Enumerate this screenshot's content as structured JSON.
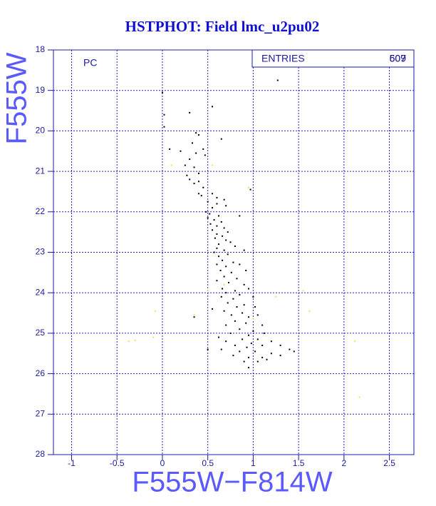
{
  "chart_data": {
    "type": "scatter",
    "title": "HSTPHOT: Field lmc_u2pu02",
    "x_label": "F555W−F814W",
    "y_label": "F555W",
    "annotation": "PC",
    "stats": {
      "label": "ENTRIES",
      "values": [
        509,
        607
      ]
    },
    "xlim": [
      -1.2,
      2.77
    ],
    "ylim": [
      28,
      18
    ],
    "xticks": [
      -1,
      -0.5,
      0,
      0.5,
      1,
      1.5,
      2,
      2.5
    ],
    "yticks": [
      18,
      19,
      20,
      21,
      22,
      23,
      24,
      25,
      26,
      27,
      28
    ],
    "grid": true,
    "series": [
      {
        "color": "#000000",
        "x": [
          0,
          0.02,
          0.02,
          0.3,
          0.55,
          1.27,
          0.37,
          0.4,
          0.33,
          0.65,
          0.08,
          0.2,
          0.45,
          0.37,
          0.47,
          0.3,
          0.25,
          0.35,
          0.27,
          0.4,
          0.3,
          0.35,
          0.4,
          0.45,
          0.97,
          0.4,
          0.43,
          0.55,
          0.6,
          0.68,
          0.5,
          0.6,
          0.7,
          0.55,
          0.48,
          0.52,
          0.62,
          0.5,
          0.57,
          0.65,
          0.85,
          0.53,
          0.6,
          0.68,
          0.55,
          0.72,
          0.6,
          0.66,
          0.58,
          0.7,
          0.62,
          0.75,
          0.6,
          0.68,
          0.8,
          0.57,
          0.72,
          0.62,
          0.9,
          0.66,
          0.78,
          0.6,
          0.7,
          0.85,
          0.64,
          0.76,
          0.92,
          0.68,
          0.82,
          0.6,
          0.73,
          0.9,
          0.66,
          0.8,
          0.95,
          0.7,
          0.85,
          0.65,
          0.78,
          1.0,
          0.72,
          0.9,
          0.82,
          1.02,
          0.68,
          0.88,
          0.76,
          0.95,
          1.05,
          0.55,
          0.8,
          0.92,
          0.7,
          1.1,
          0.85,
          1.0,
          0.75,
          0.95,
          1.12,
          0.62,
          0.88,
          1.05,
          0.7,
          0.98,
          1.2,
          0.8,
          1.1,
          0.93,
          1.3,
          0.65,
          0.85,
          1.02,
          1.2,
          1.4,
          1.45,
          0.5,
          0.78,
          0.95,
          1.1,
          1.3,
          0.9,
          1.05,
          1.15,
          0.95,
          0.35
        ],
        "values": [
          19.05,
          19.6,
          19.9,
          19.55,
          19.4,
          18.75,
          20.05,
          20.1,
          20.3,
          20.2,
          20.45,
          20.5,
          20.45,
          20.55,
          20.6,
          20.7,
          20.85,
          20.9,
          21.1,
          21.05,
          21.2,
          21.3,
          21.25,
          21.4,
          21.45,
          21.55,
          21.6,
          21.55,
          21.65,
          21.7,
          21.75,
          21.8,
          21.85,
          21.9,
          22.0,
          22.05,
          22.1,
          22.15,
          22.2,
          22.25,
          22.1,
          22.3,
          22.35,
          22.4,
          22.45,
          22.5,
          22.55,
          22.6,
          22.65,
          22.7,
          22.8,
          22.75,
          22.9,
          22.95,
          22.85,
          23.0,
          23.05,
          23.1,
          22.95,
          23.2,
          23.25,
          23.3,
          23.35,
          23.3,
          23.45,
          23.5,
          23.45,
          23.6,
          23.65,
          23.7,
          23.75,
          23.8,
          23.9,
          23.95,
          23.9,
          24.0,
          24.05,
          24.1,
          24.15,
          24.1,
          24.25,
          24.3,
          24.35,
          24.35,
          24.45,
          24.5,
          24.55,
          24.6,
          24.55,
          24.4,
          24.7,
          24.75,
          24.8,
          24.8,
          24.9,
          24.95,
          25.0,
          25.05,
          25.0,
          25.1,
          25.15,
          25.15,
          25.2,
          25.25,
          25.2,
          25.3,
          25.3,
          25.35,
          25.3,
          25.4,
          25.45,
          25.45,
          25.5,
          25.4,
          25.45,
          25.4,
          25.55,
          25.6,
          25.6,
          25.55,
          25.7,
          25.7,
          25.65,
          25.85,
          24.6
        ]
      },
      {
        "color": "#e8e060",
        "x": [
          0.1,
          0.55,
          0.95,
          0.5,
          -0.08,
          0.35,
          1.25,
          1.55,
          1.62,
          -0.37,
          -0.3,
          -0.1,
          2.12,
          2.17,
          1.0,
          0.68
        ],
        "values": [
          20.85,
          20.85,
          21.4,
          23.95,
          24.45,
          24.55,
          24.1,
          23.95,
          24.45,
          25.2,
          25.18,
          25.1,
          25.2,
          26.58,
          24.65,
          23.8
        ]
      }
    ]
  }
}
